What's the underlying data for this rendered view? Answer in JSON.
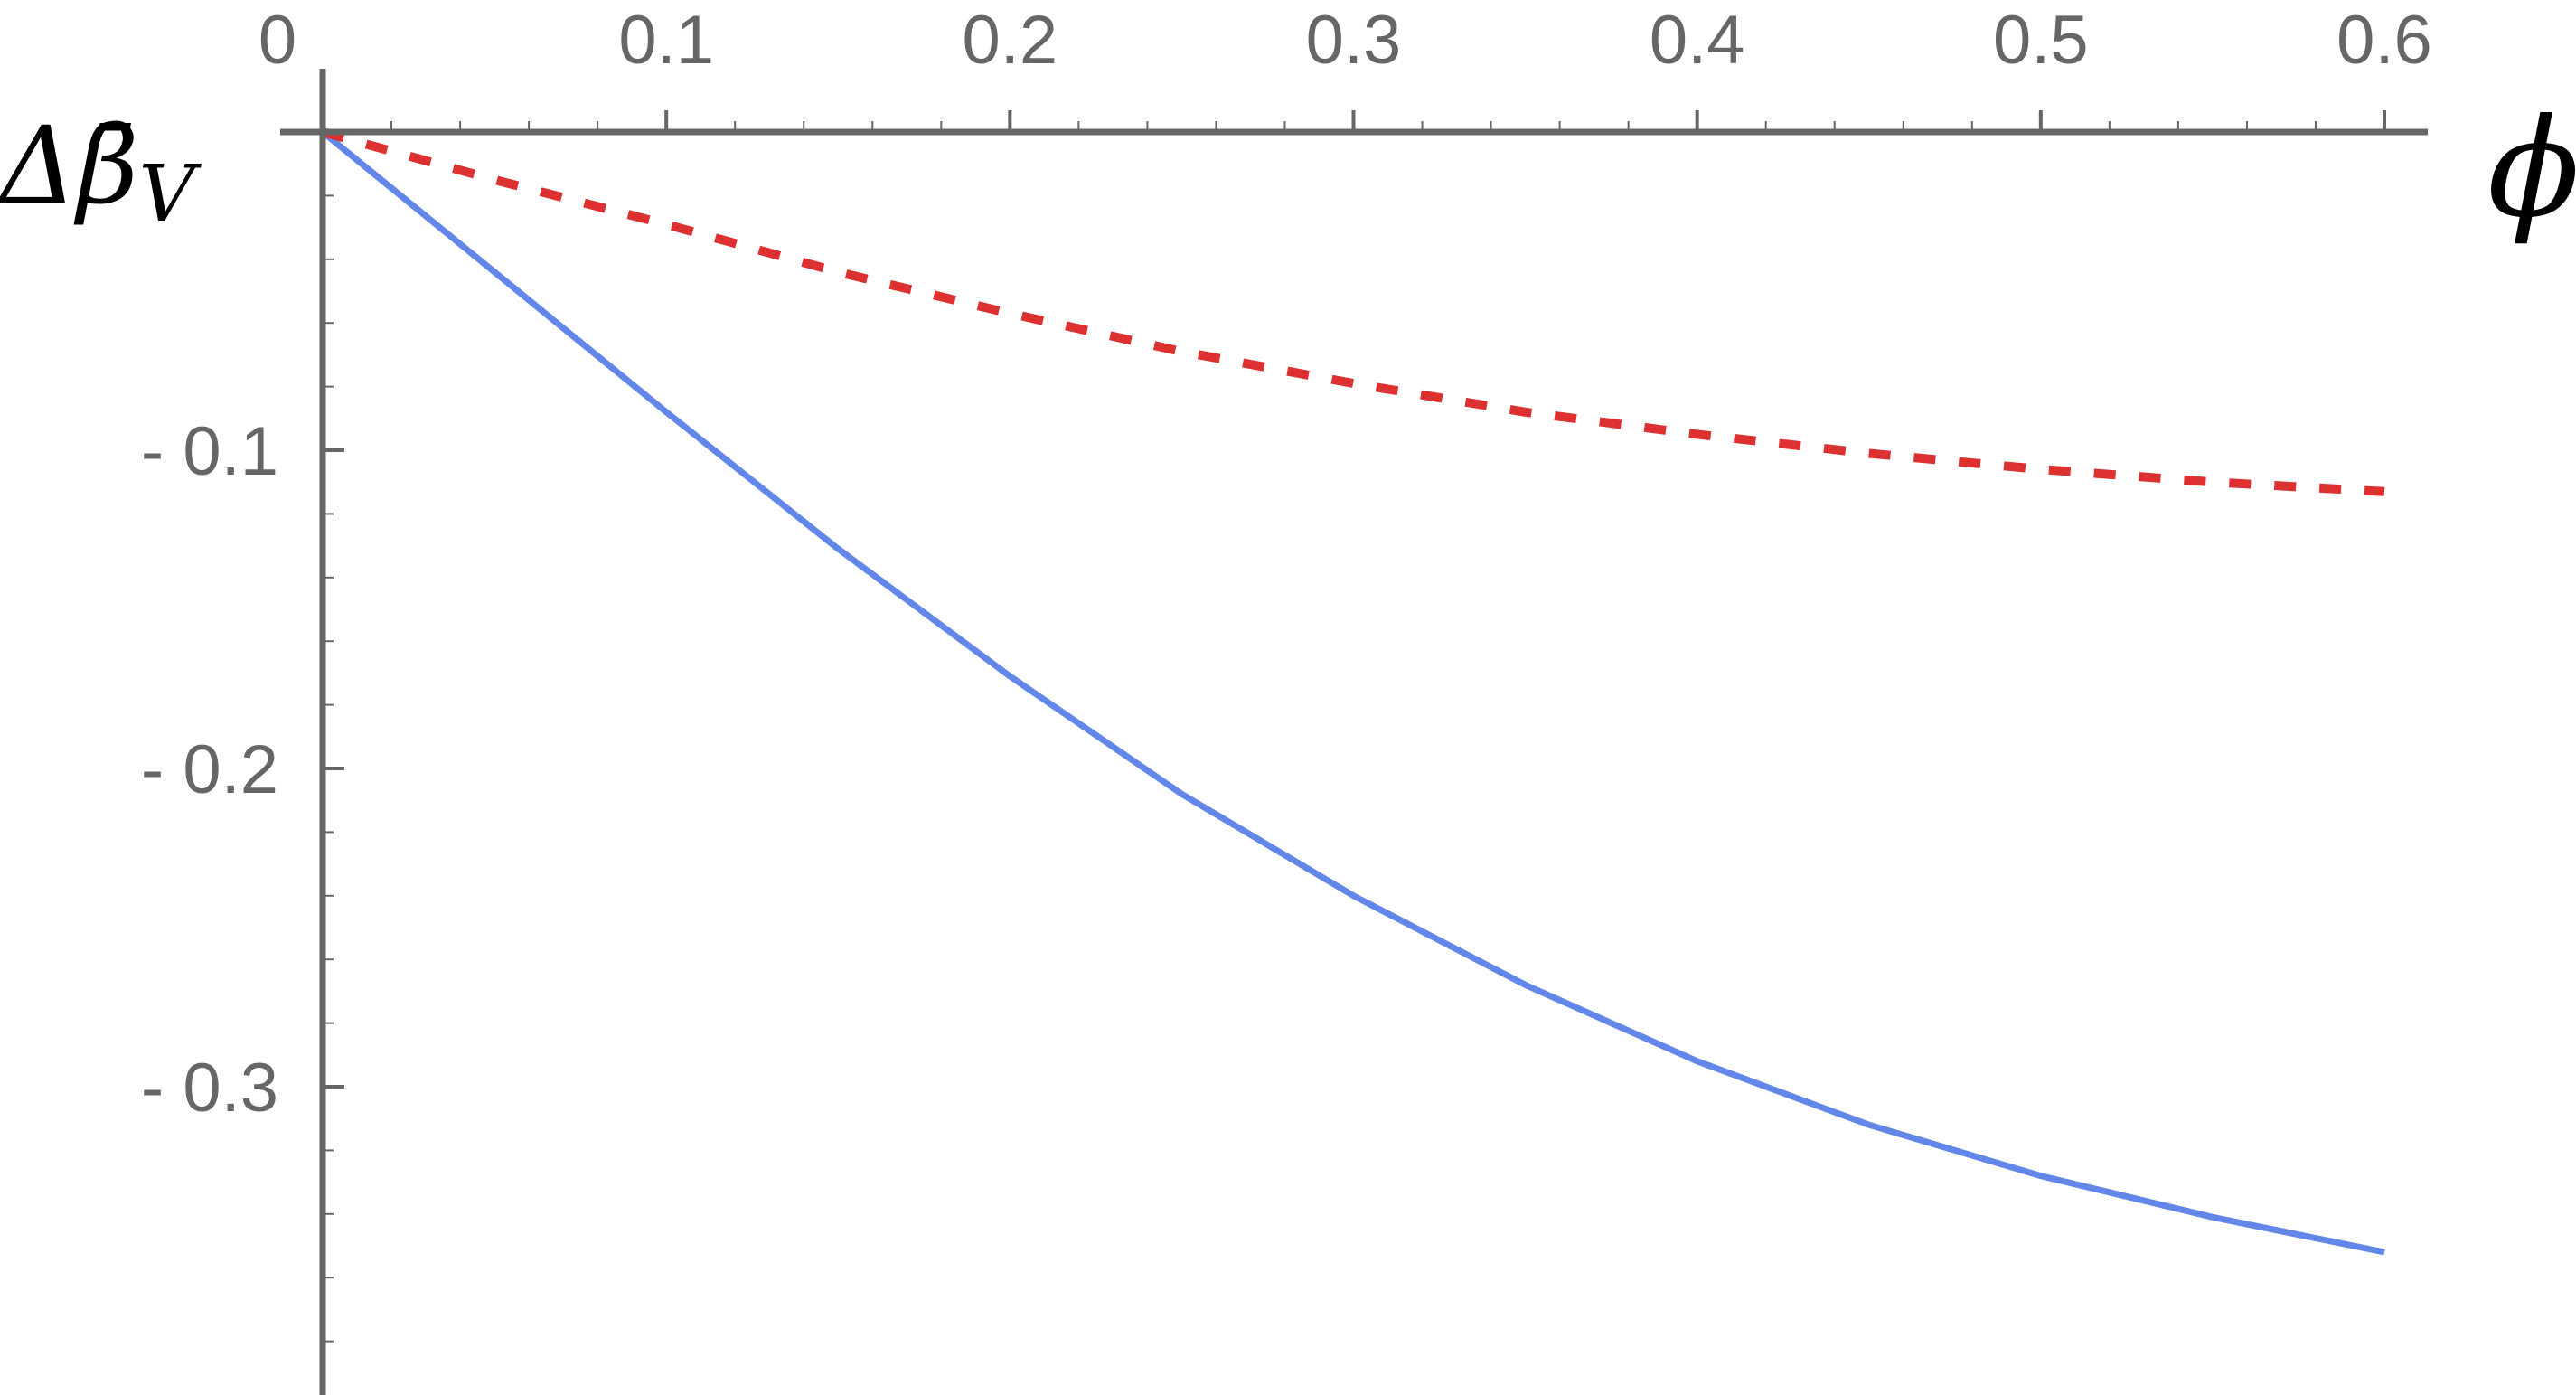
{
  "chart_data": {
    "type": "line",
    "xlabel": "ϕ",
    "ylabel_main": "Δβ̄",
    "ylabel_sub": "V",
    "xlim": [
      0,
      0.6
    ],
    "ylim": [
      -0.395,
      0.0
    ],
    "x_ticks": [
      0.0,
      0.1,
      0.2,
      0.3,
      0.4,
      0.5,
      0.6
    ],
    "x_tick_labels": [
      "0",
      "0.1",
      "0.2",
      "0.3",
      "0.4",
      "0.5",
      "0.6"
    ],
    "y_ticks": [
      -0.1,
      -0.2,
      -0.3
    ],
    "y_tick_labels": [
      "- 0.1",
      "- 0.2",
      "- 0.3"
    ],
    "grid": false,
    "series": [
      {
        "color": "#6287e8",
        "style": "solid",
        "x": [
          0.0,
          0.05,
          0.1,
          0.15,
          0.2,
          0.25,
          0.3,
          0.35,
          0.4,
          0.45,
          0.5,
          0.55,
          0.6
        ],
        "values": [
          0.0,
          -0.044,
          -0.088,
          -0.131,
          -0.171,
          -0.208,
          -0.24,
          -0.268,
          -0.292,
          -0.312,
          -0.328,
          -0.341,
          -0.352
        ]
      },
      {
        "color": "#dd3030",
        "style": "dashed",
        "x": [
          0.0,
          0.05,
          0.1,
          0.15,
          0.2,
          0.25,
          0.3,
          0.35,
          0.4,
          0.45,
          0.5,
          0.55,
          0.6
        ],
        "values": [
          0.0,
          -0.015,
          -0.029,
          -0.044,
          -0.057,
          -0.069,
          -0.079,
          -0.088,
          -0.095,
          -0.101,
          -0.106,
          -0.11,
          -0.113
        ]
      }
    ]
  }
}
